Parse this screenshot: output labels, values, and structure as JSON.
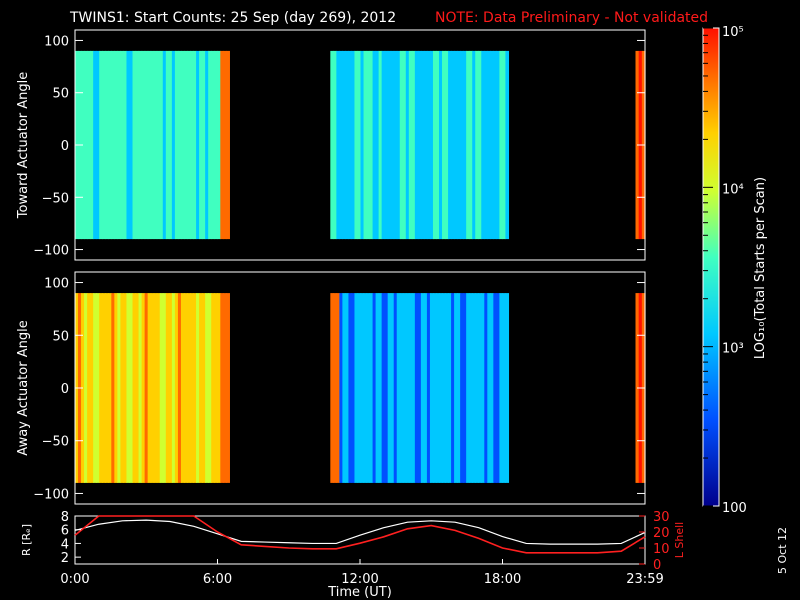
{
  "title": "TWINS1: Start Counts: 25 Sep (day 269), 2012",
  "note": "NOTE: Data Preliminary - Not validated",
  "stamp": "5 Oct 12",
  "colors": {
    "note": "#ff1a1a",
    "rLine": "#ffffff",
    "lLine": "#ff2020"
  },
  "chart_data": [
    {
      "type": "heatmap",
      "panel": "toward",
      "ylabel": "Toward Actuator Angle",
      "ylim": [
        -110,
        110
      ],
      "yticks": [
        "100",
        "50",
        "0",
        "−50",
        "−100"
      ],
      "segments_hours": [
        [
          0,
          6.5
        ],
        [
          10.75,
          18.25
        ],
        [
          23.6,
          24.1
        ]
      ],
      "angle_range": [
        -90,
        90
      ]
    },
    {
      "type": "heatmap",
      "panel": "away",
      "ylabel": "Away Actuator Angle",
      "ylim": [
        -110,
        110
      ],
      "yticks": [
        "100",
        "50",
        "0",
        "−50",
        "−100"
      ],
      "segments_hours": [
        [
          0,
          6.5
        ],
        [
          10.75,
          18.25
        ],
        [
          23.6,
          24.1
        ]
      ],
      "angle_range": [
        -90,
        90
      ]
    },
    {
      "type": "line",
      "panel": "orbit",
      "ylabel": "R [Rₑ]",
      "y2label": "L Shell",
      "ylim": [
        1,
        8
      ],
      "y2lim": [
        0,
        30
      ],
      "yticks": [
        "8",
        "6",
        "4",
        "2"
      ],
      "y2ticks": [
        "30",
        "20",
        "10",
        "0"
      ],
      "xlabel": "Time (UT)",
      "xticks": [
        "0:00",
        "6:00",
        "12:00",
        "18:00",
        "23:59"
      ],
      "x_hours": [
        0,
        1,
        2,
        3,
        4,
        5,
        6,
        7,
        8,
        9,
        10,
        11,
        12,
        13,
        14,
        15,
        16,
        17,
        18,
        19,
        20,
        21,
        22,
        23,
        24
      ],
      "series": [
        {
          "name": "R",
          "values": [
            5.9,
            6.8,
            7.3,
            7.4,
            7.2,
            6.5,
            5.4,
            4.3,
            4.2,
            4.1,
            4.0,
            4.0,
            5.2,
            6.3,
            7.1,
            7.3,
            7.1,
            6.3,
            5.0,
            4.0,
            3.9,
            3.9,
            3.9,
            4.0,
            5.6
          ]
        },
        {
          "name": "L Shell",
          "values": [
            18,
            30,
            30,
            30,
            30,
            30,
            20,
            12,
            11,
            10,
            9.5,
            9.5,
            13,
            17,
            22,
            24,
            21,
            16,
            10,
            7,
            7,
            7,
            7,
            8,
            17
          ]
        }
      ]
    },
    {
      "type": "heatmap",
      "panel": "colorbar",
      "ylabel": "LOG₁₀(Total Starts per Scan)",
      "scale": "log",
      "range": [
        100,
        100000
      ],
      "ticks": [
        "10⁵",
        "10⁴",
        "10³",
        "100"
      ]
    }
  ]
}
